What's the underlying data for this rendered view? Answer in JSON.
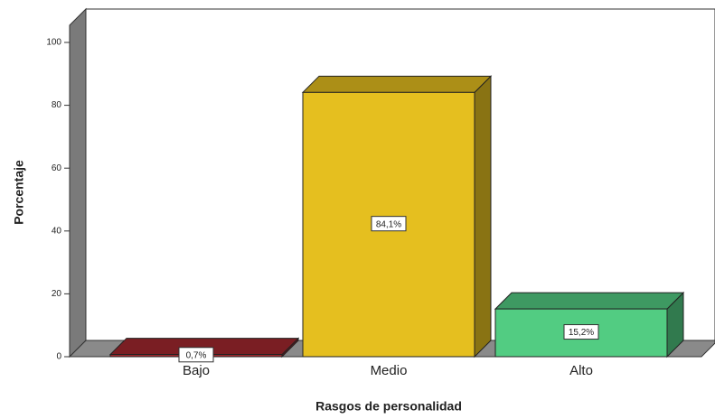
{
  "chart_data": {
    "type": "bar3d",
    "categories": [
      "Bajo",
      "Medio",
      "Alto"
    ],
    "values": [
      0.7,
      84.1,
      15.2
    ],
    "value_labels": [
      "0,7%",
      "84,1%",
      "15,2%"
    ],
    "colors": [
      "#a3282e",
      "#e5bf1f",
      "#52cc82"
    ],
    "xlabel": "Rasgos de personalidad",
    "ylabel": "Porcentaje",
    "ylim": [
      0,
      100
    ],
    "yticks": [
      0,
      20,
      40,
      60,
      80,
      100
    ]
  }
}
